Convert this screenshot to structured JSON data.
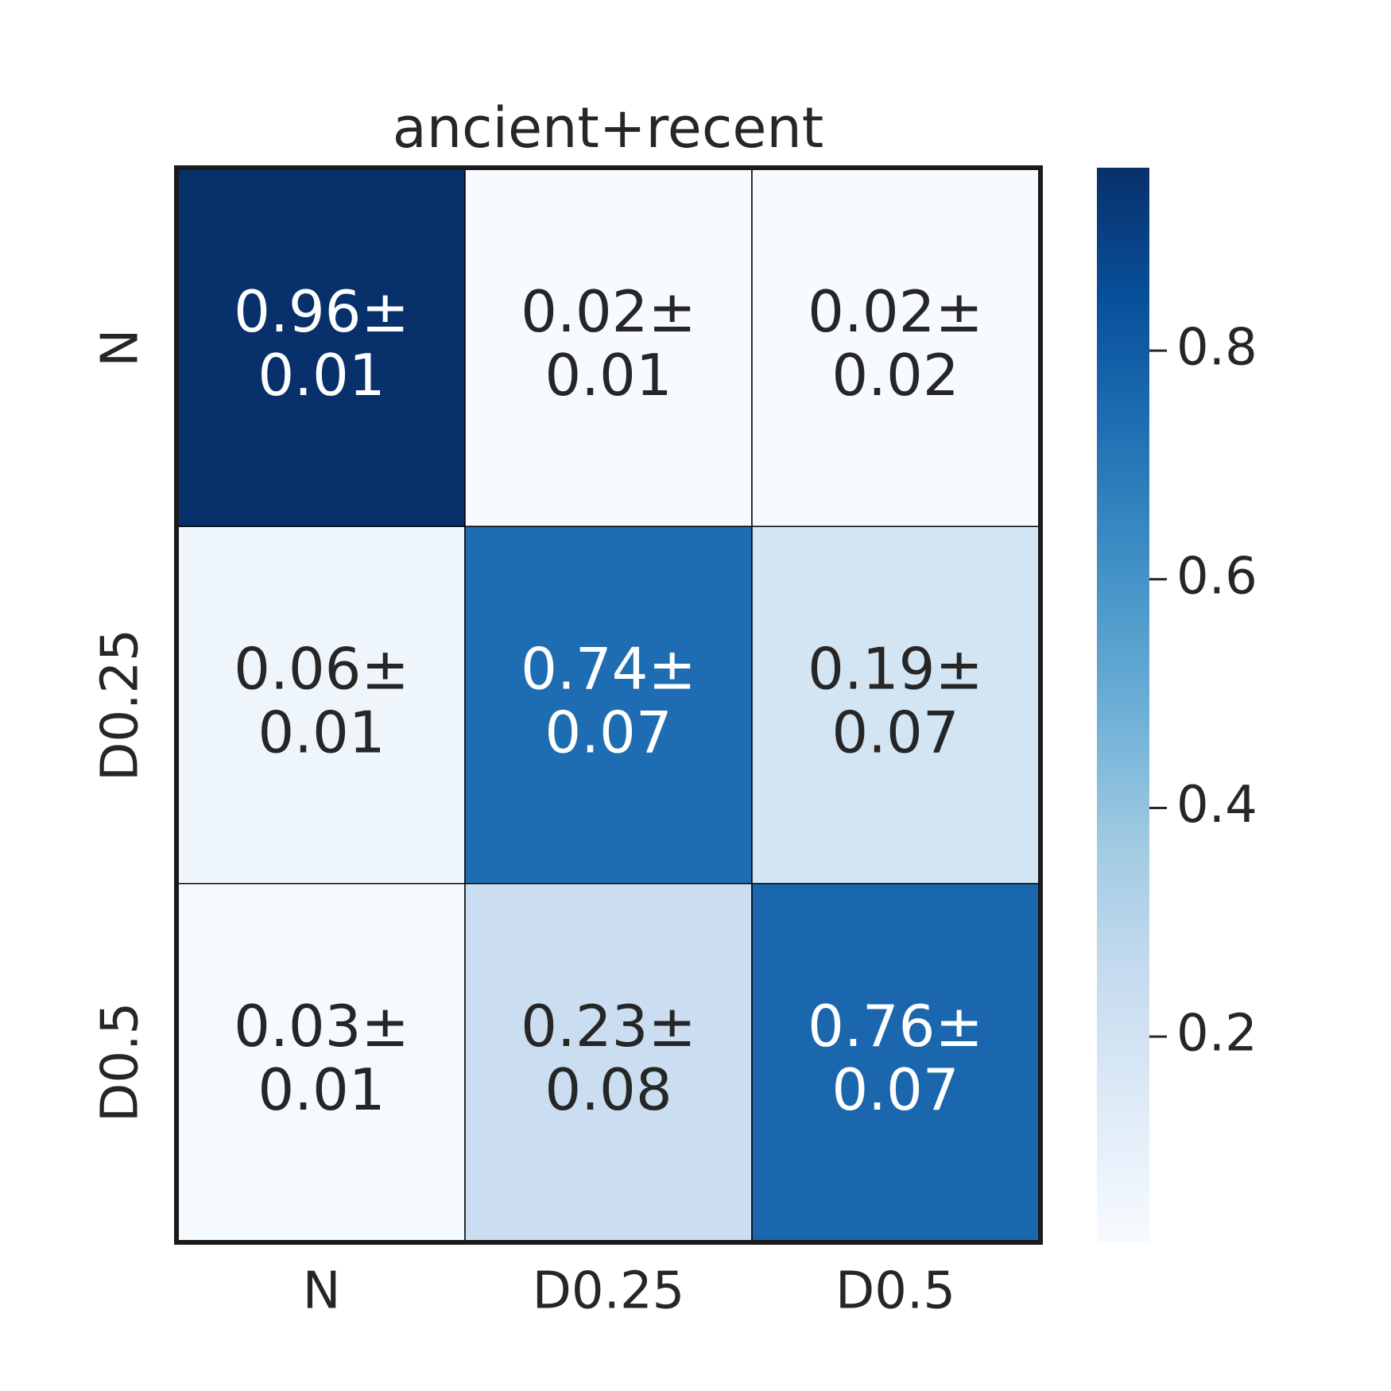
{
  "chart_data": {
    "type": "heatmap",
    "title": "ancient+recent",
    "categories": [
      "N",
      "D0.25",
      "D0.5"
    ],
    "y_categories": [
      "N",
      "D0.25",
      "D0.5"
    ],
    "values": [
      [
        0.96,
        0.02,
        0.02
      ],
      [
        0.06,
        0.74,
        0.19
      ],
      [
        0.03,
        0.23,
        0.76
      ]
    ],
    "value_labels": [
      [
        "0.96±",
        "0.02±",
        "0.02±"
      ],
      [
        "0.06±",
        "0.74±",
        "0.19±"
      ],
      [
        "0.03±",
        "0.23±",
        "0.76±"
      ]
    ],
    "errors": [
      [
        0.01,
        0.01,
        0.02
      ],
      [
        0.01,
        0.07,
        0.07
      ],
      [
        0.01,
        0.08,
        0.07
      ]
    ],
    "zlim": [
      0.02,
      0.96
    ],
    "zticks": [
      0.2,
      0.4,
      0.6,
      0.8
    ],
    "colormap": [
      "#f7fbff",
      "#deebf7",
      "#c6dbef",
      "#9ecae1",
      "#6baed6",
      "#4292c6",
      "#2171b5",
      "#08519c",
      "#08306b"
    ]
  }
}
